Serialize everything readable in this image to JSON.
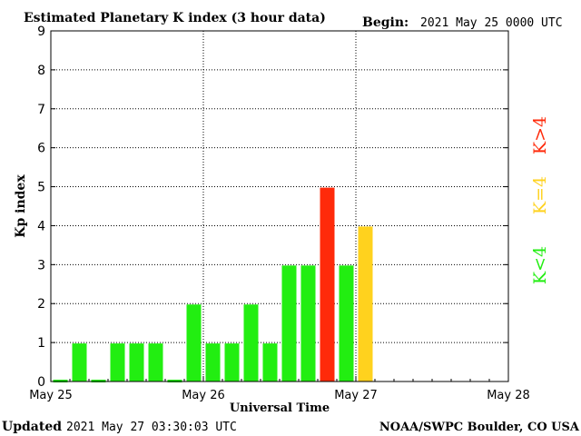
{
  "header": {
    "title": "Estimated Planetary K index (3 hour data)",
    "begin_label": "Begin:",
    "begin_value": "2021 May 25 0000 UTC"
  },
  "footer": {
    "updated_label": "Updated",
    "updated_value": "2021 May 27 03:30:03 UTC",
    "source": "NOAA/SWPC Boulder, CO USA"
  },
  "legend": [
    {
      "label": "K>4",
      "color": "#ff2a0a"
    },
    {
      "label": "K=4",
      "color": "#ffd21e"
    },
    {
      "label": "K<4",
      "color": "#22ee11"
    }
  ],
  "chart_data": {
    "type": "bar",
    "title": "Estimated Planetary K index (3 hour data)",
    "xlabel": "Universal Time",
    "ylabel": "Kp index",
    "ylim": [
      0,
      9
    ],
    "yticks": [
      "0",
      "1",
      "2",
      "3",
      "4",
      "5",
      "6",
      "7",
      "8",
      "9"
    ],
    "xticks": [
      "May 25",
      "May 26",
      "May 27",
      "May 28"
    ],
    "grid": true,
    "bar_interval_hours": 3,
    "days_shown": 3,
    "values": [
      0,
      1,
      0,
      1,
      1,
      1,
      0,
      2,
      1,
      1,
      2,
      1,
      3,
      3,
      5,
      3,
      4
    ],
    "colors": {
      "below_4": "#22ee11",
      "equal_4": "#ffd21e",
      "above_4": "#ff2a0a"
    }
  }
}
